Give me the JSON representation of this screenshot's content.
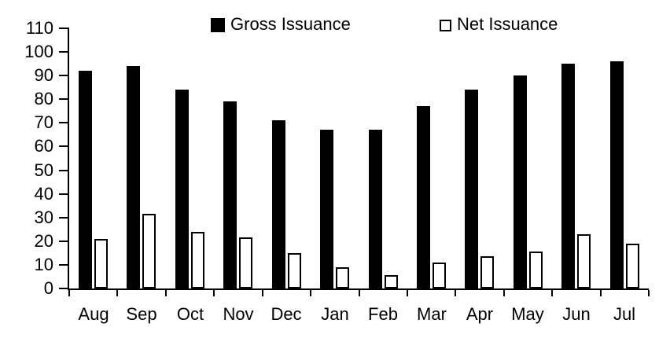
{
  "chart_data": {
    "type": "bar",
    "categories": [
      "Aug",
      "Sep",
      "Oct",
      "Nov",
      "Dec",
      "Jan",
      "Feb",
      "Mar",
      "Apr",
      "May",
      "Jun",
      "Jul"
    ],
    "series": [
      {
        "name": "Gross Issuance",
        "color": "#000000",
        "values": [
          92,
          94,
          84,
          79,
          71,
          67,
          67,
          77,
          84,
          90,
          95,
          96
        ]
      },
      {
        "name": "Net Issuance",
        "color": "#ffffff",
        "border_color": "#000000",
        "values": [
          21,
          31.5,
          24,
          21.5,
          15,
          9,
          5.5,
          11,
          13.5,
          15.5,
          23,
          19
        ]
      }
    ],
    "title": "",
    "xlabel": "",
    "ylabel": "",
    "ylim": [
      0,
      110
    ],
    "ytick_step": 10,
    "grid": false,
    "legend_position": "top",
    "axis_color": "#000000",
    "background_color": "#ffffff"
  }
}
